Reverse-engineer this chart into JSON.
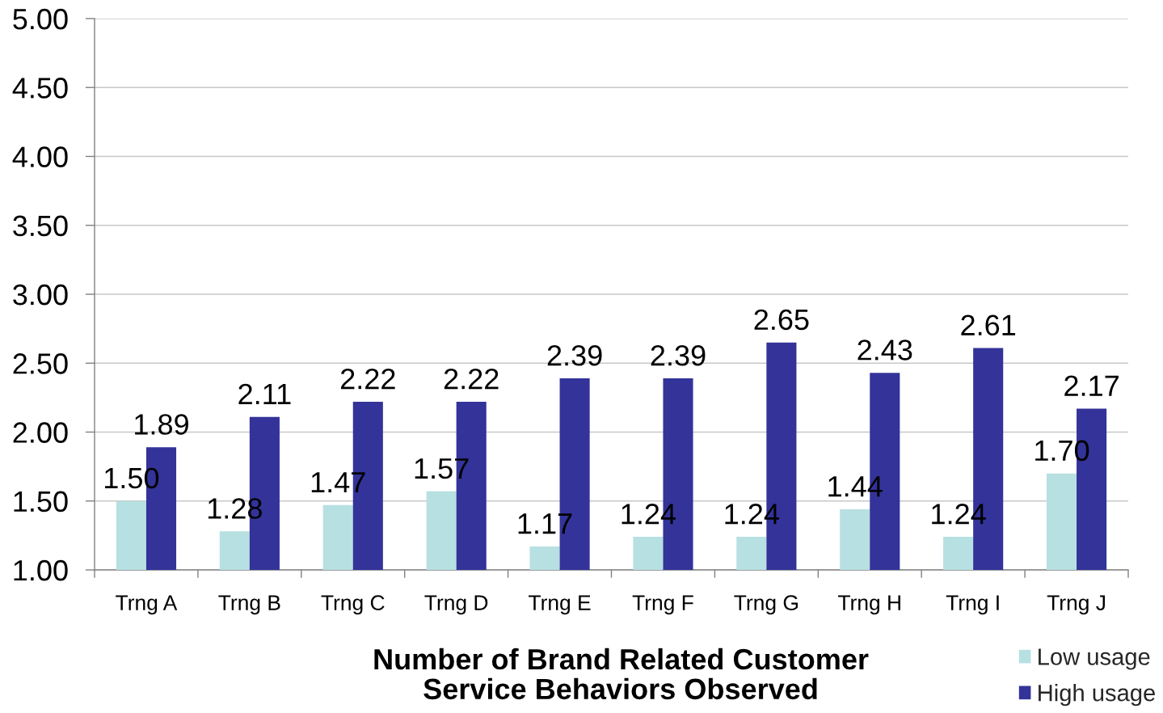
{
  "chart_data": {
    "type": "bar",
    "xlabel": "Number of Brand Related Customer\nService Behaviors Observed",
    "categories": [
      "Trng A",
      "Trng B",
      "Trng C",
      "Trng D",
      "Trng E",
      "Trng F",
      "Trng G",
      "Trng H",
      "Trng I",
      "Trng J"
    ],
    "series": [
      {
        "name": "Low usage",
        "color": "#b7e0e2",
        "values": [
          1.5,
          1.28,
          1.47,
          1.57,
          1.17,
          1.24,
          1.24,
          1.44,
          1.24,
          1.7
        ],
        "value_labels": [
          "1.50",
          "1.28",
          "1.47",
          "1.57",
          "1.17",
          "1.24",
          "1.24",
          "1.44",
          "1.24",
          "1.70"
        ]
      },
      {
        "name": "High usage",
        "color": "#333399",
        "values": [
          1.89,
          2.11,
          2.22,
          2.22,
          2.39,
          2.39,
          2.65,
          2.43,
          2.61,
          2.17
        ],
        "value_labels": [
          "1.89",
          "2.11",
          "2.22",
          "2.22",
          "2.39",
          "2.39",
          "2.65",
          "2.43",
          "2.61",
          "2.17"
        ]
      }
    ],
    "ylim": [
      1,
      5
    ],
    "yticks": [
      {
        "value": 1,
        "label": "1.00"
      },
      {
        "value": 1.5,
        "label": "1.50"
      },
      {
        "value": 2,
        "label": "2.00"
      },
      {
        "value": 2.5,
        "label": "2.50"
      },
      {
        "value": 3,
        "label": "3.00"
      },
      {
        "value": 3.5,
        "label": "3.50"
      },
      {
        "value": 4,
        "label": "4.00"
      },
      {
        "value": 4.5,
        "label": "4.50"
      },
      {
        "value": 5,
        "label": "5.00"
      }
    ],
    "grid": "y",
    "legend": "bottom right"
  }
}
